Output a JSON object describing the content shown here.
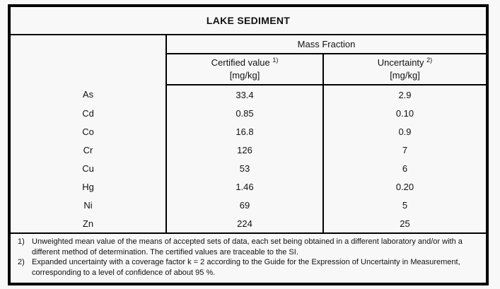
{
  "title": "LAKE SEDIMENT",
  "table": {
    "group_header": "Mass Fraction",
    "columns": [
      {
        "label": "Certified value",
        "sup": "1)",
        "unit": "[mg/kg]"
      },
      {
        "label": "Uncertainty",
        "sup": "2)",
        "unit": "[mg/kg]"
      }
    ],
    "rows": [
      {
        "element": "As",
        "certified": "33.4",
        "uncertainty": "2.9"
      },
      {
        "element": "Cd",
        "certified": "0.85",
        "uncertainty": "0.10"
      },
      {
        "element": "Co",
        "certified": "16.8",
        "uncertainty": "0.9"
      },
      {
        "element": "Cr",
        "certified": "126",
        "uncertainty": "7"
      },
      {
        "element": "Cu",
        "certified": "53",
        "uncertainty": "6"
      },
      {
        "element": "Hg",
        "certified": "1.46",
        "uncertainty": "0.20"
      },
      {
        "element": "Ni",
        "certified": "69",
        "uncertainty": "5"
      },
      {
        "element": "Zn",
        "certified": "224",
        "uncertainty": "25"
      }
    ]
  },
  "footnotes": [
    {
      "marker": "1)",
      "text": "Unweighted mean value of the means of accepted sets of data, each set being obtained in a different laboratory and/or with a different method of determination. The certified values are traceable to the SI."
    },
    {
      "marker": "2)",
      "text": "Expanded uncertainty with a coverage factor k = 2 according to the Guide for the Expression of Uncertainty in Measurement, corresponding to a level of confidence of about 95 %."
    }
  ],
  "colors": {
    "background": "#f8f8f8",
    "border": "#000000",
    "text": "#111111"
  }
}
